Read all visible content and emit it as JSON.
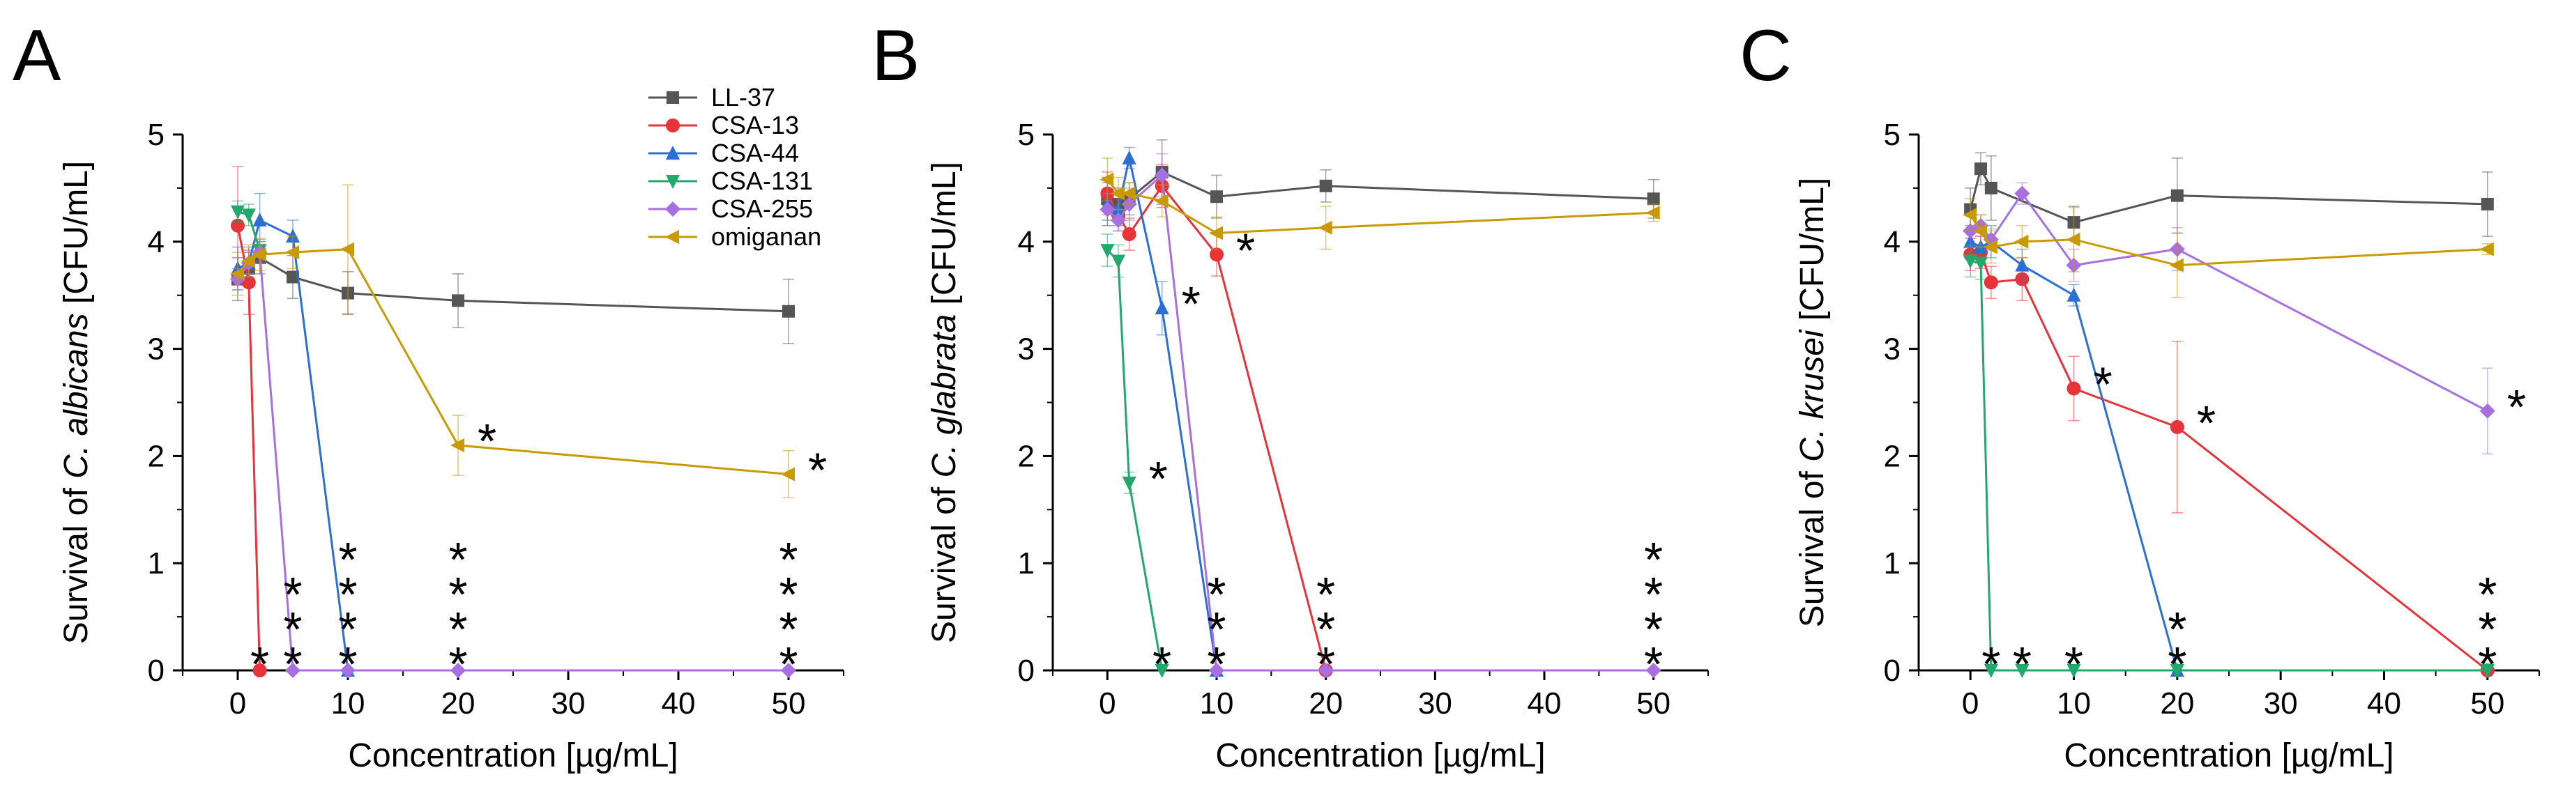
{
  "colors": {
    "LL-37": "#555555",
    "CSA-13": "#e8333a",
    "CSA-44": "#2b6fd6",
    "CSA-131": "#22a86a",
    "CSA-255": "#a86fe0",
    "omiganan": "#c99a00"
  },
  "legend": {
    "placement": "top-right of panel A",
    "entries": [
      {
        "name": "LL-37",
        "marker": "square"
      },
      {
        "name": "CSA-13",
        "marker": "circle"
      },
      {
        "name": "CSA-44",
        "marker": "triangle-up"
      },
      {
        "name": "CSA-131",
        "marker": "triangle-down"
      },
      {
        "name": "CSA-255",
        "marker": "diamond"
      },
      {
        "name": "omiganan",
        "marker": "triangle-left"
      }
    ]
  },
  "chart_data": [
    {
      "type": "line",
      "panel": "A",
      "xlabel": "Concentration [µg/mL]",
      "ylabel_prefix": "Survival of ",
      "ylabel_species": "C. albicans",
      "ylabel_suffix": " [CFU/mL]",
      "xlim": [
        -5,
        55
      ],
      "ylim": [
        0,
        5
      ],
      "xticks": [
        0,
        10,
        20,
        30,
        40,
        50
      ],
      "yticks": [
        0,
        1,
        2,
        3,
        4,
        5
      ],
      "series": [
        {
          "name": "LL-37",
          "x": [
            0,
            1,
            2,
            5,
            10,
            20,
            50
          ],
          "y": [
            3.65,
            3.75,
            3.85,
            3.67,
            3.52,
            3.45,
            3.35
          ],
          "err": [
            0.2,
            0.15,
            0.15,
            0.2,
            0.2,
            0.25,
            0.3
          ]
        },
        {
          "name": "CSA-13",
          "x": [
            0,
            1,
            2
          ],
          "y": [
            4.15,
            3.62,
            0
          ],
          "err": [
            0.55,
            0.3,
            0
          ]
        },
        {
          "name": "CSA-44",
          "x": [
            0,
            1,
            2,
            5,
            10
          ],
          "y": [
            3.75,
            3.8,
            4.2,
            4.05,
            0
          ],
          "err": [
            0.2,
            0.15,
            0.25,
            0.15,
            0
          ]
        },
        {
          "name": "CSA-131",
          "x": [
            0,
            1,
            2
          ],
          "y": [
            4.28,
            4.25,
            3.92
          ],
          "err": [
            0.1,
            0.1,
            0.1
          ]
        },
        {
          "name": "CSA-255",
          "x": [
            0,
            1,
            2,
            5,
            10,
            20,
            50
          ],
          "y": [
            3.65,
            3.8,
            3.9,
            0,
            0,
            0,
            0
          ],
          "err": [
            0.1,
            0.1,
            0.1,
            0,
            0,
            0,
            0
          ]
        },
        {
          "name": "omiganan",
          "x": [
            0,
            1,
            2,
            5,
            10,
            20,
            50
          ],
          "y": [
            3.7,
            3.82,
            3.88,
            3.9,
            3.93,
            2.1,
            1.83
          ],
          "err": [
            0.2,
            0.15,
            0.15,
            0.15,
            0.6,
            0.28,
            0.22
          ]
        }
      ],
      "annotations": [
        {
          "x": 2,
          "y": 0,
          "stars": 1
        },
        {
          "x": 5,
          "y": 0,
          "stars": 3
        },
        {
          "x": 10,
          "y": 0,
          "stars": 4
        },
        {
          "x": 20,
          "y": 0,
          "stars": 4
        },
        {
          "x": 50,
          "y": 0,
          "stars": 4
        },
        {
          "x": 20,
          "y": 2.1,
          "stars": 1
        },
        {
          "x": 50,
          "y": 1.83,
          "stars": 1
        }
      ]
    },
    {
      "type": "line",
      "panel": "B",
      "xlabel": "Concentration [µg/mL]",
      "ylabel_prefix": "Survival of ",
      "ylabel_species": "C. glabrata",
      "ylabel_suffix": " [CFU/mL]",
      "xlim": [
        -5,
        55
      ],
      "ylim": [
        0,
        5
      ],
      "xticks": [
        0,
        10,
        20,
        30,
        40,
        50
      ],
      "yticks": [
        0,
        1,
        2,
        3,
        4,
        5
      ],
      "series": [
        {
          "name": "LL-37",
          "x": [
            0,
            1,
            2,
            5,
            10,
            20,
            50
          ],
          "y": [
            4.4,
            4.35,
            4.4,
            4.65,
            4.42,
            4.52,
            4.4
          ],
          "err": [
            0.2,
            0.15,
            0.15,
            0.3,
            0.2,
            0.15,
            0.18
          ]
        },
        {
          "name": "CSA-13",
          "x": [
            0,
            1,
            2,
            5,
            10,
            20
          ],
          "y": [
            4.45,
            4.25,
            4.07,
            4.52,
            3.88,
            0
          ],
          "err": [
            0.2,
            0.15,
            0.15,
            0.2,
            0.2,
            0
          ]
        },
        {
          "name": "CSA-44",
          "x": [
            0,
            1,
            2,
            5,
            10
          ],
          "y": [
            4.35,
            4.3,
            4.78,
            3.38,
            0
          ],
          "err": [
            0.2,
            0.15,
            0.1,
            0.25,
            0
          ]
        },
        {
          "name": "CSA-131",
          "x": [
            0,
            1,
            2,
            5
          ],
          "y": [
            3.92,
            3.82,
            1.75,
            0
          ],
          "err": [
            0.15,
            0.15,
            0.1,
            0
          ]
        },
        {
          "name": "CSA-255",
          "x": [
            0,
            1,
            2,
            5,
            10,
            20,
            50
          ],
          "y": [
            4.3,
            4.2,
            4.35,
            4.62,
            0,
            0,
            0
          ],
          "err": [
            0.15,
            0.1,
            0.15,
            0.2,
            0,
            0,
            0
          ]
        },
        {
          "name": "omiganan",
          "x": [
            0,
            1,
            2,
            5,
            10,
            20,
            50
          ],
          "y": [
            4.58,
            4.45,
            4.45,
            4.38,
            4.08,
            4.13,
            4.27
          ],
          "err": [
            0.2,
            0.15,
            0.1,
            0.15,
            0.15,
            0.2,
            0.08
          ]
        }
      ],
      "annotations": [
        {
          "x": 2,
          "y": 1.75,
          "stars": 1
        },
        {
          "x": 5,
          "y": 3.38,
          "stars": 1
        },
        {
          "x": 10,
          "y": 3.88,
          "stars": 1
        },
        {
          "x": 5,
          "y": 0,
          "stars": 1
        },
        {
          "x": 10,
          "y": 0,
          "stars": 3
        },
        {
          "x": 20,
          "y": 0,
          "stars": 3
        },
        {
          "x": 50,
          "y": 0,
          "stars": 4
        }
      ]
    },
    {
      "type": "line",
      "panel": "C",
      "xlabel": "Concentration [µg/mL]",
      "ylabel_prefix": "Survival of ",
      "ylabel_species": "C. krusei",
      "ylabel_suffix": " [CFU/mL]",
      "xlim": [
        -5,
        55
      ],
      "ylim": [
        0,
        5
      ],
      "xticks": [
        0,
        10,
        20,
        30,
        40,
        50
      ],
      "yticks": [
        0,
        1,
        2,
        3,
        4,
        5
      ],
      "series": [
        {
          "name": "LL-37",
          "x": [
            0,
            1,
            2,
            10,
            20,
            50
          ],
          "y": [
            4.3,
            4.68,
            4.5,
            4.18,
            4.43,
            4.35
          ],
          "err": [
            0.2,
            0.15,
            0.3,
            0.15,
            0.35,
            0.3
          ]
        },
        {
          "name": "CSA-13",
          "x": [
            0,
            1,
            2,
            5,
            10,
            20,
            50
          ],
          "y": [
            3.88,
            3.9,
            3.62,
            3.65,
            2.63,
            2.27,
            0
          ],
          "err": [
            0.15,
            0.15,
            0.15,
            0.2,
            0.3,
            0.8,
            0
          ]
        },
        {
          "name": "CSA-44",
          "x": [
            0,
            1,
            2,
            5,
            10,
            20
          ],
          "y": [
            4.0,
            3.95,
            4.0,
            3.78,
            3.5,
            0
          ],
          "err": [
            0.15,
            0.15,
            0.15,
            0.15,
            0.1,
            0
          ]
        },
        {
          "name": "CSA-131",
          "x": [
            0,
            1,
            2,
            5,
            10,
            20,
            50
          ],
          "y": [
            3.82,
            3.8,
            0,
            0,
            0,
            0,
            0
          ],
          "err": [
            0.15,
            0.15,
            0,
            0,
            0,
            0,
            0
          ]
        },
        {
          "name": "CSA-255",
          "x": [
            0,
            1,
            2,
            5,
            10,
            20,
            50
          ],
          "y": [
            4.1,
            4.15,
            4.02,
            4.45,
            3.78,
            3.93,
            2.42
          ],
          "err": [
            0.15,
            0.1,
            0.1,
            0.1,
            0.15,
            0.2,
            0.4
          ]
        },
        {
          "name": "omiganan",
          "x": [
            0,
            1,
            2,
            5,
            10,
            20,
            50
          ],
          "y": [
            4.25,
            4.1,
            3.95,
            4.0,
            4.02,
            3.78,
            3.93
          ],
          "err": [
            0.15,
            0.15,
            0.15,
            0.15,
            0.3,
            0.3,
            0.05
          ]
        }
      ],
      "annotations": [
        {
          "x": 2,
          "y": 0,
          "stars": 1
        },
        {
          "x": 5,
          "y": 0,
          "stars": 1
        },
        {
          "x": 10,
          "y": 0,
          "stars": 1
        },
        {
          "x": 20,
          "y": 0,
          "stars": 2
        },
        {
          "x": 50,
          "y": 0,
          "stars": 3
        },
        {
          "x": 10,
          "y": 2.63,
          "stars": 1
        },
        {
          "x": 20,
          "y": 2.27,
          "stars": 1
        },
        {
          "x": 50,
          "y": 2.42,
          "stars": 1
        }
      ]
    }
  ]
}
